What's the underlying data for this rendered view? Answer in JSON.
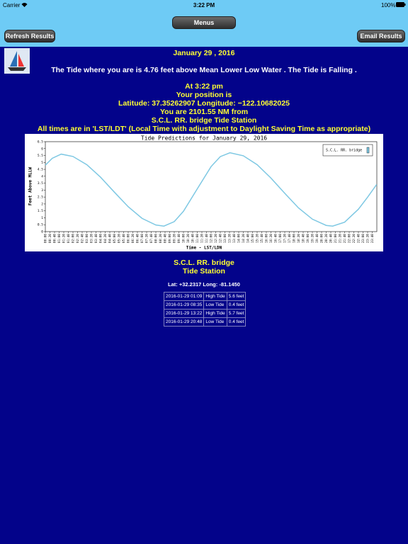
{
  "status": {
    "carrier": "Carrier",
    "time": "3:22 PM",
    "battery": "100%"
  },
  "toolbar": {
    "menus": "Menus",
    "refresh": "Refresh Results",
    "email": "Email Results"
  },
  "content": {
    "date": "January 29 , 2016",
    "tide_sentence": "The Tide where you are is 4.76 feet above Mean Lower Low Water . The Tide is Falling .",
    "time_line": "At 3:22 pm",
    "position_label": "Your position is",
    "coordinates": "Latitude: 37.35262907 Longitude: −122.10682025",
    "distance": "You are 2101.55 NM from",
    "station": "S.C.L. RR. bridge Tide Station",
    "times_note": "All times are in 'LST/LDT' (Local Time with adjustment to Daylight Saving Time as appropriate)"
  },
  "chart_data": {
    "type": "line",
    "title": "Tide Predictions for January 29, 2016",
    "xlabel": "Time - LST/LDN",
    "ylabel": "Feet Above MLLW",
    "legend": "top-right",
    "series": [
      {
        "name": "S.C.L. RR. bridge",
        "color": "#7ec8e3",
        "x": [
          0,
          30,
          69,
          120,
          180,
          240,
          300,
          360,
          420,
          480,
          515,
          560,
          600,
          660,
          720,
          760,
          802,
          860,
          920,
          980,
          1040,
          1100,
          1160,
          1220,
          1248,
          1300,
          1360,
          1400,
          1439
        ],
        "values": [
          4.8,
          5.3,
          5.6,
          5.43,
          4.84,
          3.93,
          2.85,
          1.8,
          0.96,
          0.48,
          0.4,
          0.72,
          1.47,
          3.09,
          4.7,
          5.42,
          5.7,
          5.48,
          4.84,
          3.87,
          2.77,
          1.71,
          0.9,
          0.45,
          0.4,
          0.68,
          1.62,
          2.49,
          3.4
        ]
      }
    ],
    "xlim": [
      0,
      1440
    ],
    "ylim": [
      0,
      6.5
    ],
    "yticks": [
      0,
      0.5,
      1,
      1.5,
      2,
      2.5,
      3,
      3.5,
      4,
      4.5,
      5,
      5.5,
      6,
      6.5
    ],
    "xticks": [
      {
        "value": 0,
        "label": "00:00"
      },
      {
        "value": 20,
        "label": "00:20"
      },
      {
        "value": 40,
        "label": "00:40"
      },
      {
        "value": 60,
        "label": "01:00"
      },
      {
        "value": 80,
        "label": "01:20"
      },
      {
        "value": 100,
        "label": "01:40"
      },
      {
        "value": 120,
        "label": "02:00"
      },
      {
        "value": 140,
        "label": "02:20"
      },
      {
        "value": 160,
        "label": "02:40"
      },
      {
        "value": 180,
        "label": "03:00"
      },
      {
        "value": 200,
        "label": "03:20"
      },
      {
        "value": 220,
        "label": "03:40"
      },
      {
        "value": 240,
        "label": "04:00"
      },
      {
        "value": 260,
        "label": "04:20"
      },
      {
        "value": 280,
        "label": "04:40"
      },
      {
        "value": 300,
        "label": "05:00"
      },
      {
        "value": 320,
        "label": "05:20"
      },
      {
        "value": 340,
        "label": "05:40"
      },
      {
        "value": 360,
        "label": "06:00"
      },
      {
        "value": 380,
        "label": "06:20"
      },
      {
        "value": 400,
        "label": "06:40"
      },
      {
        "value": 420,
        "label": "07:00"
      },
      {
        "value": 440,
        "label": "07:20"
      },
      {
        "value": 460,
        "label": "07:40"
      },
      {
        "value": 480,
        "label": "08:00"
      },
      {
        "value": 500,
        "label": "08:20"
      },
      {
        "value": 520,
        "label": "08:40"
      },
      {
        "value": 540,
        "label": "09:00"
      },
      {
        "value": 560,
        "label": "09:20"
      },
      {
        "value": 580,
        "label": "09:40"
      },
      {
        "value": 600,
        "label": "10:00"
      },
      {
        "value": 620,
        "label": "10:20"
      },
      {
        "value": 640,
        "label": "10:40"
      },
      {
        "value": 660,
        "label": "11:00"
      },
      {
        "value": 680,
        "label": "11:20"
      },
      {
        "value": 700,
        "label": "11:40"
      },
      {
        "value": 720,
        "label": "12:00"
      },
      {
        "value": 740,
        "label": "12:20"
      },
      {
        "value": 760,
        "label": "12:40"
      },
      {
        "value": 780,
        "label": "13:00"
      },
      {
        "value": 800,
        "label": "13:20"
      },
      {
        "value": 820,
        "label": "13:40"
      },
      {
        "value": 840,
        "label": "14:00"
      },
      {
        "value": 860,
        "label": "14:20"
      },
      {
        "value": 880,
        "label": "14:40"
      },
      {
        "value": 900,
        "label": "15:00"
      },
      {
        "value": 920,
        "label": "15:20"
      },
      {
        "value": 940,
        "label": "15:40"
      },
      {
        "value": 960,
        "label": "16:00"
      },
      {
        "value": 980,
        "label": "16:20"
      },
      {
        "value": 1000,
        "label": "16:40"
      },
      {
        "value": 1020,
        "label": "17:00"
      },
      {
        "value": 1040,
        "label": "17:20"
      },
      {
        "value": 1060,
        "label": "17:40"
      },
      {
        "value": 1080,
        "label": "18:00"
      },
      {
        "value": 1100,
        "label": "18:20"
      },
      {
        "value": 1120,
        "label": "18:40"
      },
      {
        "value": 1140,
        "label": "19:00"
      },
      {
        "value": 1160,
        "label": "19:20"
      },
      {
        "value": 1180,
        "label": "19:40"
      },
      {
        "value": 1200,
        "label": "20:00"
      },
      {
        "value": 1220,
        "label": "20:20"
      },
      {
        "value": 1240,
        "label": "20:40"
      },
      {
        "value": 1260,
        "label": "21:00"
      },
      {
        "value": 1280,
        "label": "21:20"
      },
      {
        "value": 1300,
        "label": "21:40"
      },
      {
        "value": 1320,
        "label": "22:00"
      },
      {
        "value": 1340,
        "label": "22:20"
      },
      {
        "value": 1360,
        "label": "22:40"
      },
      {
        "value": 1380,
        "label": "23:00"
      },
      {
        "value": 1400,
        "label": "23:20"
      },
      {
        "value": 1420,
        "label": "23:40"
      }
    ]
  },
  "station_block": {
    "name": "S.C.L. RR. bridge",
    "subtitle": "Tide Station",
    "coords": "Lat: +32.2317 Long: -81.1450"
  },
  "table": {
    "rows": [
      [
        "2016-01-29 01:09",
        "High Tide",
        "5.6 feet"
      ],
      [
        "2016-01-29 08:35",
        "Low Tide",
        "0.4 feet"
      ],
      [
        "2016-01-29 13:22",
        "High Tide",
        "5.7 feet"
      ],
      [
        "2016-01-29 20:48",
        "Low Tide",
        "0.4 feet"
      ]
    ]
  }
}
